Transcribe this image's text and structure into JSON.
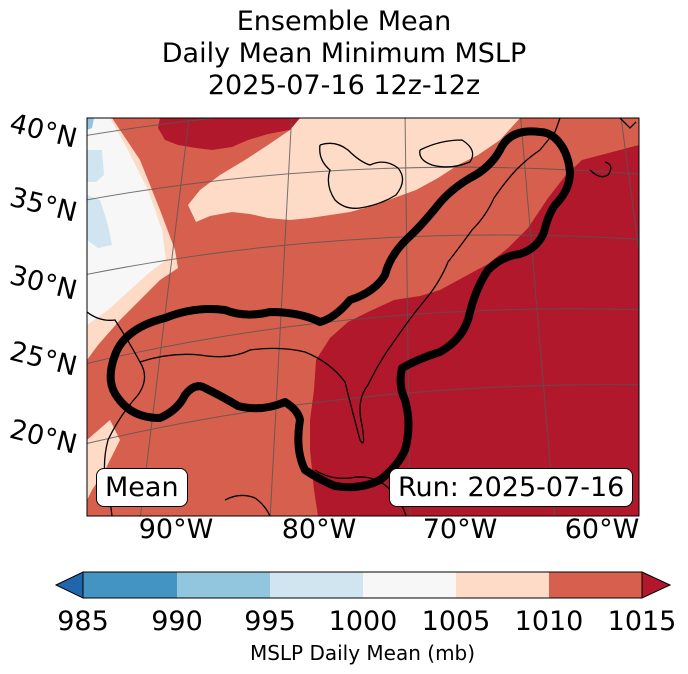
{
  "title": {
    "line1": "Ensemble Mean",
    "line2": "Daily Mean Minimum MSLP",
    "line3": "2025-07-16 12z-12z"
  },
  "map": {
    "lat_labels": [
      "40°N",
      "35°N",
      "30°N",
      "25°N",
      "20°N"
    ],
    "lon_labels": [
      "90°W",
      "80°W",
      "70°W",
      "60°W"
    ],
    "mean_box": "Mean",
    "run_box": "Run: 2025-07-16"
  },
  "colorbar": {
    "label": "MSLP Daily Mean (mb)",
    "ticks": [
      "985",
      "990",
      "995",
      "1000",
      "1005",
      "1010",
      "1015"
    ],
    "colors": {
      "below": "#2166ac",
      "985-990": "#4393c3",
      "990-995": "#92c5de",
      "995-1000": "#d1e5f0",
      "1000-1005": "#f7f7f7",
      "1005-1010": "#fddbc7",
      "1010-1015": "#d6604d",
      "above": "#b2182b"
    }
  }
}
